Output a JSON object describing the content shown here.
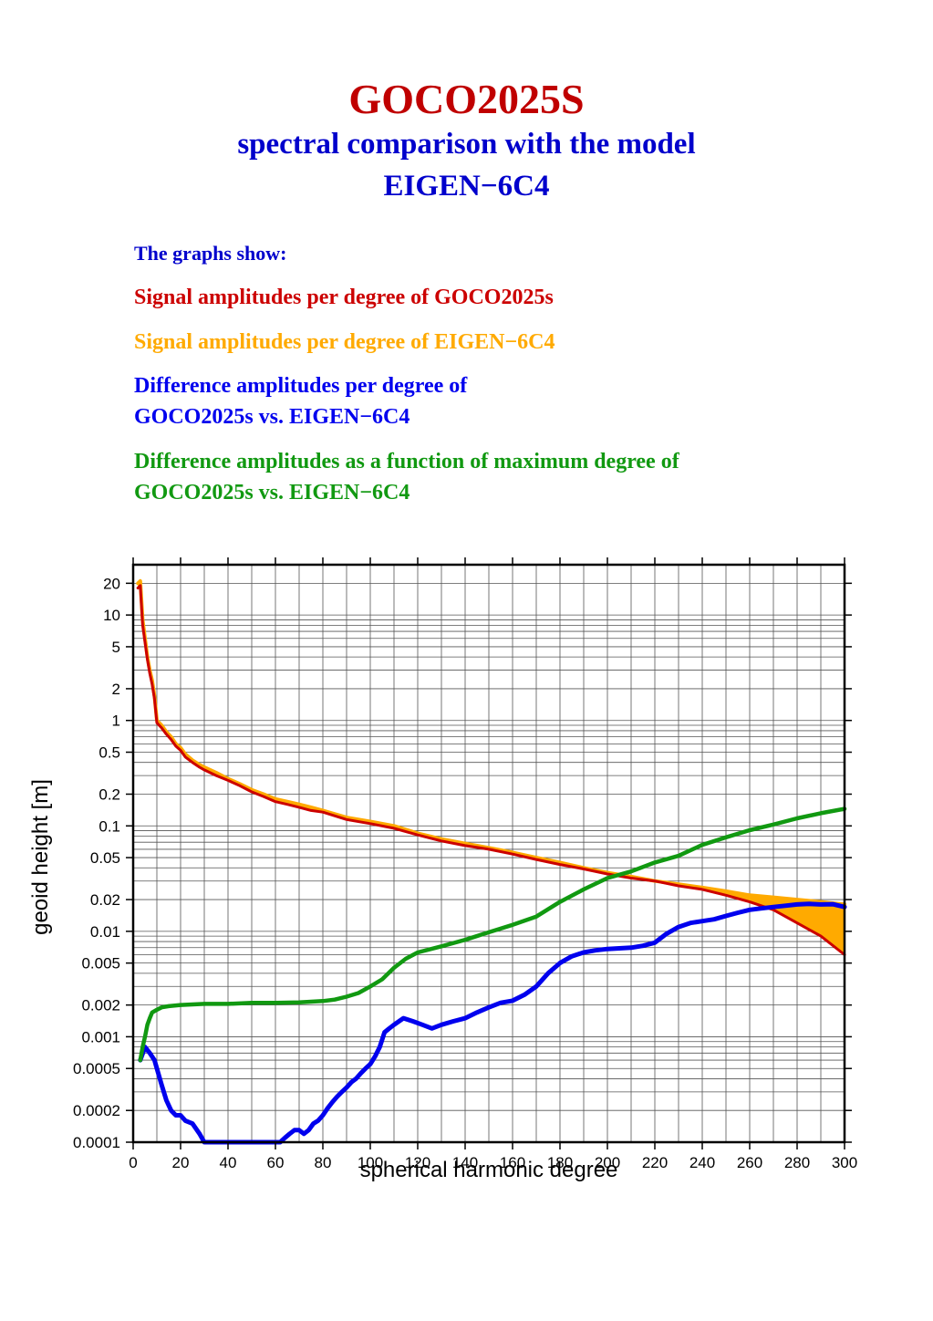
{
  "header": {
    "title": "GOCO2025S",
    "subtitle_line1": "spectral comparison with the model",
    "subtitle_line2": "EIGEN−6C4"
  },
  "legend": {
    "intro": "The graphs show:",
    "red": "Signal amplitudes per degree of GOCO2025s",
    "orange": "Signal amplitudes per degree of EIGEN−6C4",
    "blue_line1": "Difference amplitudes per degree of",
    "blue_line2": "GOCO2025s vs. EIGEN−6C4",
    "green_line1": "Difference amplitudes as a function of maximum degree of",
    "green_line2": "GOCO2025s vs. EIGEN−6C4"
  },
  "colors": {
    "title": "#c00000",
    "subtitle": "#0000cc",
    "goco_signal": "#cc0000",
    "eigen_signal": "#ffaa00",
    "diff_per_degree": "#0000ee",
    "cumulative_diff": "#119911"
  },
  "chart_data": {
    "type": "line",
    "xlabel": "spherical harmonic degree",
    "ylabel": "geoid height [m]",
    "xlim": [
      0,
      300
    ],
    "ylim": [
      0.0001,
      30
    ],
    "yscale": "log",
    "grid": true,
    "x_ticks": [
      "0",
      "20",
      "40",
      "60",
      "80",
      "100",
      "120",
      "140",
      "160",
      "180",
      "200",
      "220",
      "240",
      "260",
      "280",
      "300"
    ],
    "y_ticks": [
      {
        "value": 20,
        "label": "20"
      },
      {
        "value": 10,
        "label": "10"
      },
      {
        "value": 5,
        "label": "5"
      },
      {
        "value": 2,
        "label": "2"
      },
      {
        "value": 1,
        "label": "1"
      },
      {
        "value": 0.5,
        "label": "0.5"
      },
      {
        "value": 0.2,
        "label": "0.2"
      },
      {
        "value": 0.1,
        "label": "0.1"
      },
      {
        "value": 0.05,
        "label": "0.05"
      },
      {
        "value": 0.02,
        "label": "0.02"
      },
      {
        "value": 0.01,
        "label": "0.01"
      },
      {
        "value": 0.005,
        "label": "0.005"
      },
      {
        "value": 0.002,
        "label": "0.002"
      },
      {
        "value": 0.001,
        "label": "0.001"
      },
      {
        "value": 0.0005,
        "label": "0.0005"
      },
      {
        "value": 0.0002,
        "label": "0.0002"
      },
      {
        "value": 0.0001,
        "label": "0.0001"
      }
    ],
    "series": [
      {
        "key": "eigen_signal",
        "x": [
          2,
          3,
          4,
          5,
          6,
          7,
          8,
          9,
          10,
          12,
          14,
          16,
          18,
          20,
          22,
          25,
          28,
          30,
          35,
          40,
          45,
          50,
          55,
          60,
          65,
          70,
          75,
          80,
          90,
          100,
          110,
          120,
          130,
          140,
          150,
          160,
          170,
          180,
          190,
          200,
          210,
          220,
          230,
          240,
          250,
          260,
          270,
          280,
          290,
          300
        ],
        "y": [
          20,
          21,
          9,
          6,
          4,
          3,
          2.4,
          1.7,
          1.0,
          0.9,
          0.78,
          0.7,
          0.6,
          0.55,
          0.48,
          0.42,
          0.38,
          0.36,
          0.32,
          0.28,
          0.25,
          0.22,
          0.2,
          0.18,
          0.17,
          0.16,
          0.15,
          0.14,
          0.12,
          0.11,
          0.1,
          0.085,
          0.075,
          0.068,
          0.062,
          0.056,
          0.05,
          0.045,
          0.04,
          0.036,
          0.033,
          0.03,
          0.028,
          0.026,
          0.024,
          0.022,
          0.021,
          0.02,
          0.019,
          0.018
        ]
      },
      {
        "key": "goco_signal",
        "x": [
          2,
          3,
          4,
          5,
          6,
          7,
          8,
          9,
          10,
          12,
          14,
          16,
          18,
          20,
          22,
          25,
          28,
          30,
          35,
          40,
          45,
          50,
          55,
          60,
          65,
          70,
          75,
          80,
          90,
          100,
          110,
          120,
          130,
          140,
          150,
          160,
          170,
          180,
          190,
          200,
          210,
          220,
          230,
          240,
          250,
          260,
          270,
          280,
          290,
          300
        ],
        "y": [
          18,
          19,
          8,
          5.5,
          3.8,
          2.8,
          2.2,
          1.6,
          0.95,
          0.85,
          0.74,
          0.66,
          0.57,
          0.52,
          0.45,
          0.4,
          0.36,
          0.34,
          0.3,
          0.27,
          0.24,
          0.21,
          0.19,
          0.17,
          0.16,
          0.15,
          0.14,
          0.135,
          0.115,
          0.105,
          0.095,
          0.082,
          0.072,
          0.065,
          0.06,
          0.054,
          0.048,
          0.043,
          0.039,
          0.035,
          0.032,
          0.03,
          0.027,
          0.025,
          0.022,
          0.019,
          0.016,
          0.012,
          0.009,
          0.006
        ]
      },
      {
        "key": "diff_per_degree",
        "x": [
          3,
          5,
          7,
          9,
          10,
          12,
          14,
          16,
          18,
          20,
          22,
          25,
          28,
          30,
          32,
          35,
          58,
          60,
          62,
          64,
          66,
          68,
          70,
          72,
          74,
          76,
          78,
          80,
          82,
          84,
          86,
          88,
          90,
          92,
          94,
          96,
          98,
          100,
          102,
          104,
          106,
          108,
          110,
          114,
          118,
          122,
          126,
          130,
          135,
          140,
          145,
          150,
          155,
          160,
          165,
          170,
          175,
          180,
          185,
          190,
          195,
          200,
          205,
          210,
          215,
          220,
          225,
          230,
          235,
          240,
          245,
          250,
          255,
          260,
          265,
          270,
          275,
          280,
          285,
          290,
          295,
          300
        ],
        "y": [
          0.0006,
          0.0008,
          0.0007,
          0.0006,
          0.0005,
          0.00035,
          0.00025,
          0.0002,
          0.00018,
          0.00018,
          0.00016,
          0.00015,
          0.00012,
          0.0001,
          0.0001,
          0.0001,
          0.0001,
          0.0001,
          0.0001,
          0.00011,
          0.00012,
          0.00013,
          0.00013,
          0.00012,
          0.00013,
          0.00015,
          0.00016,
          0.00018,
          0.00021,
          0.00024,
          0.00027,
          0.0003,
          0.00033,
          0.00037,
          0.0004,
          0.00045,
          0.0005,
          0.00055,
          0.00065,
          0.0008,
          0.0011,
          0.0012,
          0.0013,
          0.0015,
          0.0014,
          0.0013,
          0.0012,
          0.0013,
          0.0014,
          0.0015,
          0.0017,
          0.0019,
          0.0021,
          0.0022,
          0.0025,
          0.003,
          0.004,
          0.005,
          0.0058,
          0.0063,
          0.0066,
          0.0068,
          0.0069,
          0.007,
          0.0073,
          0.0078,
          0.0095,
          0.011,
          0.012,
          0.0125,
          0.013,
          0.014,
          0.015,
          0.016,
          0.0165,
          0.017,
          0.0175,
          0.018,
          0.0182,
          0.018,
          0.0181,
          0.017
        ]
      },
      {
        "key": "cumulative_diff",
        "x": [
          3,
          4,
          5,
          6,
          7,
          8,
          10,
          12,
          15,
          20,
          30,
          40,
          50,
          60,
          70,
          80,
          85,
          90,
          95,
          100,
          105,
          110,
          115,
          120,
          130,
          140,
          150,
          160,
          170,
          180,
          190,
          200,
          210,
          220,
          230,
          240,
          250,
          260,
          270,
          280,
          290,
          300
        ],
        "y": [
          0.0006,
          0.0008,
          0.001,
          0.0013,
          0.0015,
          0.0017,
          0.0018,
          0.0019,
          0.00195,
          0.002,
          0.00205,
          0.00205,
          0.0021,
          0.0021,
          0.00212,
          0.00218,
          0.00225,
          0.0024,
          0.0026,
          0.003,
          0.0035,
          0.0045,
          0.0055,
          0.0063,
          0.0072,
          0.0083,
          0.0098,
          0.0115,
          0.0138,
          0.019,
          0.025,
          0.032,
          0.037,
          0.045,
          0.052,
          0.066,
          0.078,
          0.091,
          0.103,
          0.118,
          0.132,
          0.145
        ]
      }
    ]
  }
}
